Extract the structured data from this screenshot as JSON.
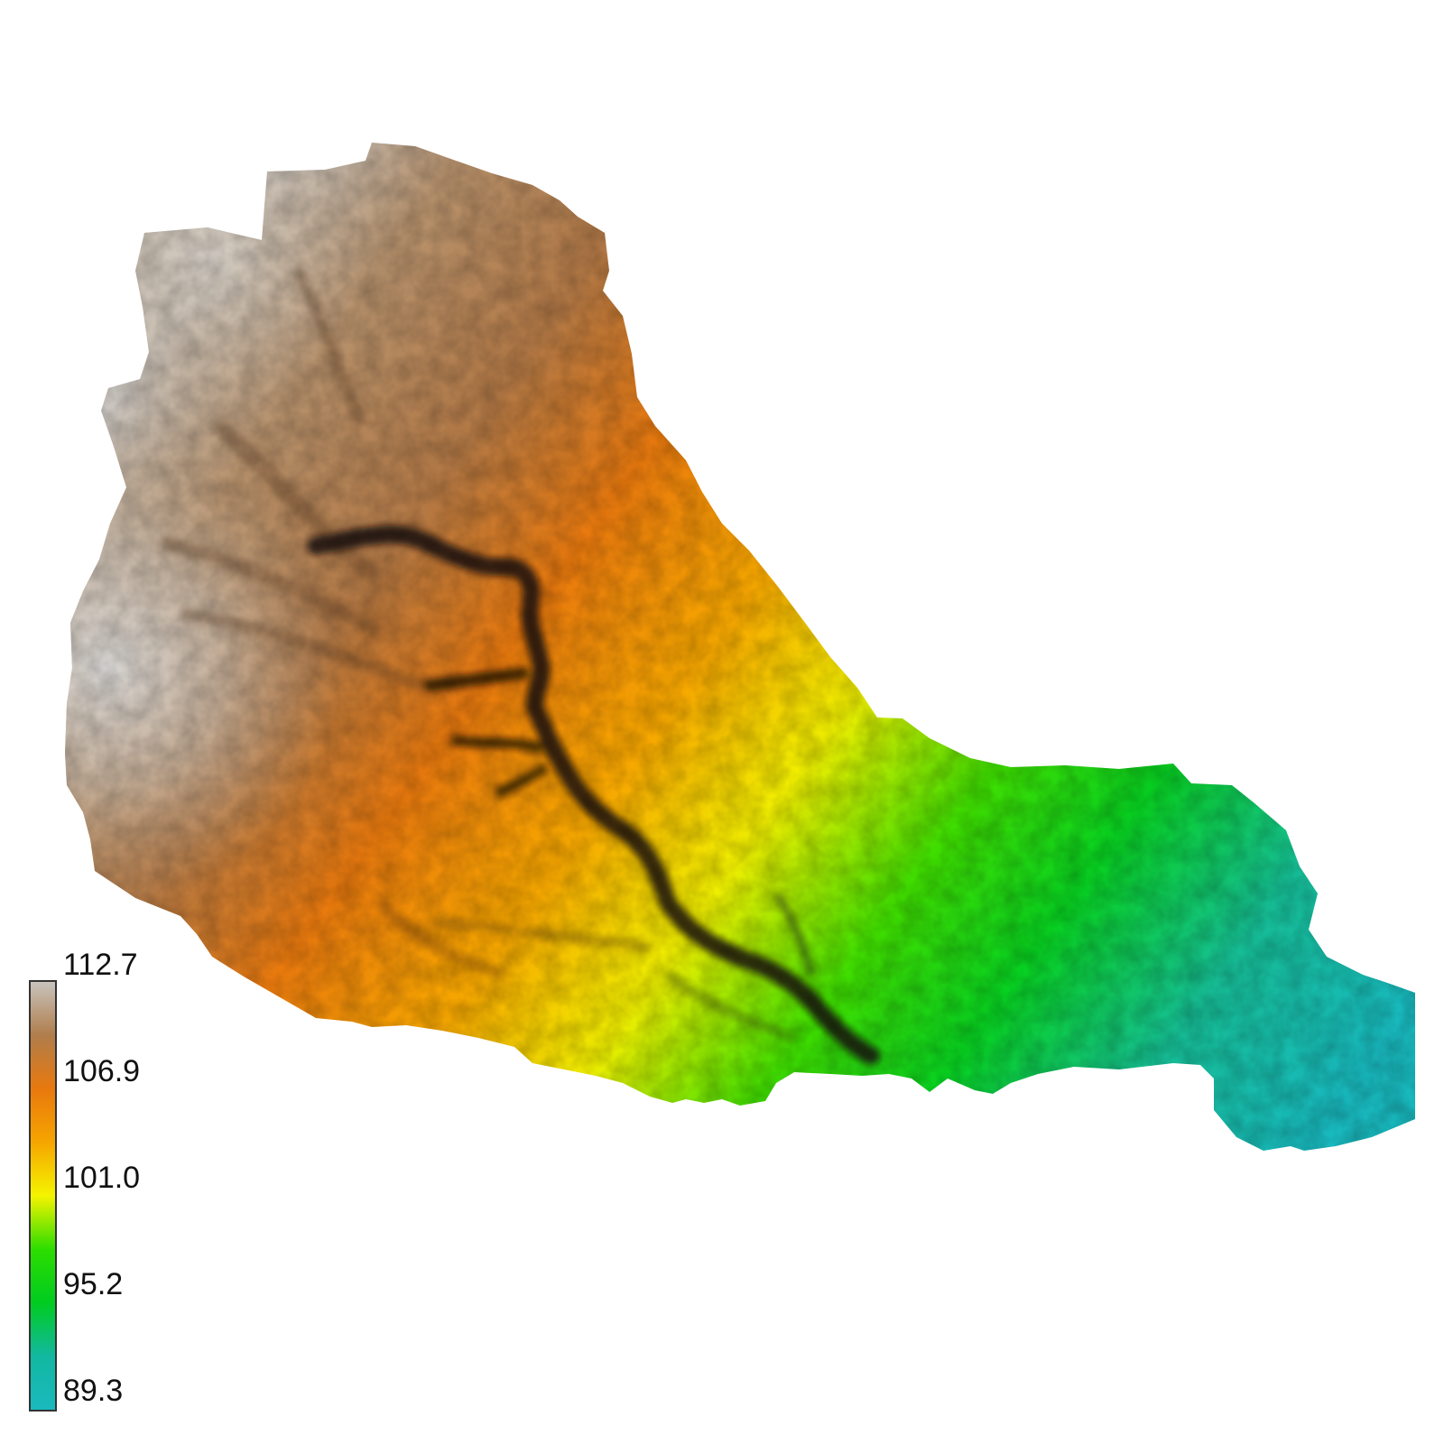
{
  "legend": {
    "ticks": [
      "112.7",
      "106.9",
      "101.0",
      "95.2",
      "89.3"
    ],
    "max": 112.7,
    "min": 89.3,
    "gradient_colors": [
      "#c8c3bd",
      "#b07d4b",
      "#e8790e",
      "#f6a500",
      "#f4f400",
      "#2ddd00",
      "#00cc20",
      "#12b8a0",
      "#1ab9be"
    ]
  },
  "map": {
    "type": "elevation hillshade raster (digital elevation model of a watershed)",
    "colors": {
      "highest": "#c8c3bd",
      "high": "#a87a50",
      "upper_mid": "#e8790e",
      "mid": "#f5e000",
      "lower_mid": "#27dd00",
      "lowest": "#16b9b8",
      "channel": "#1a1008"
    }
  }
}
